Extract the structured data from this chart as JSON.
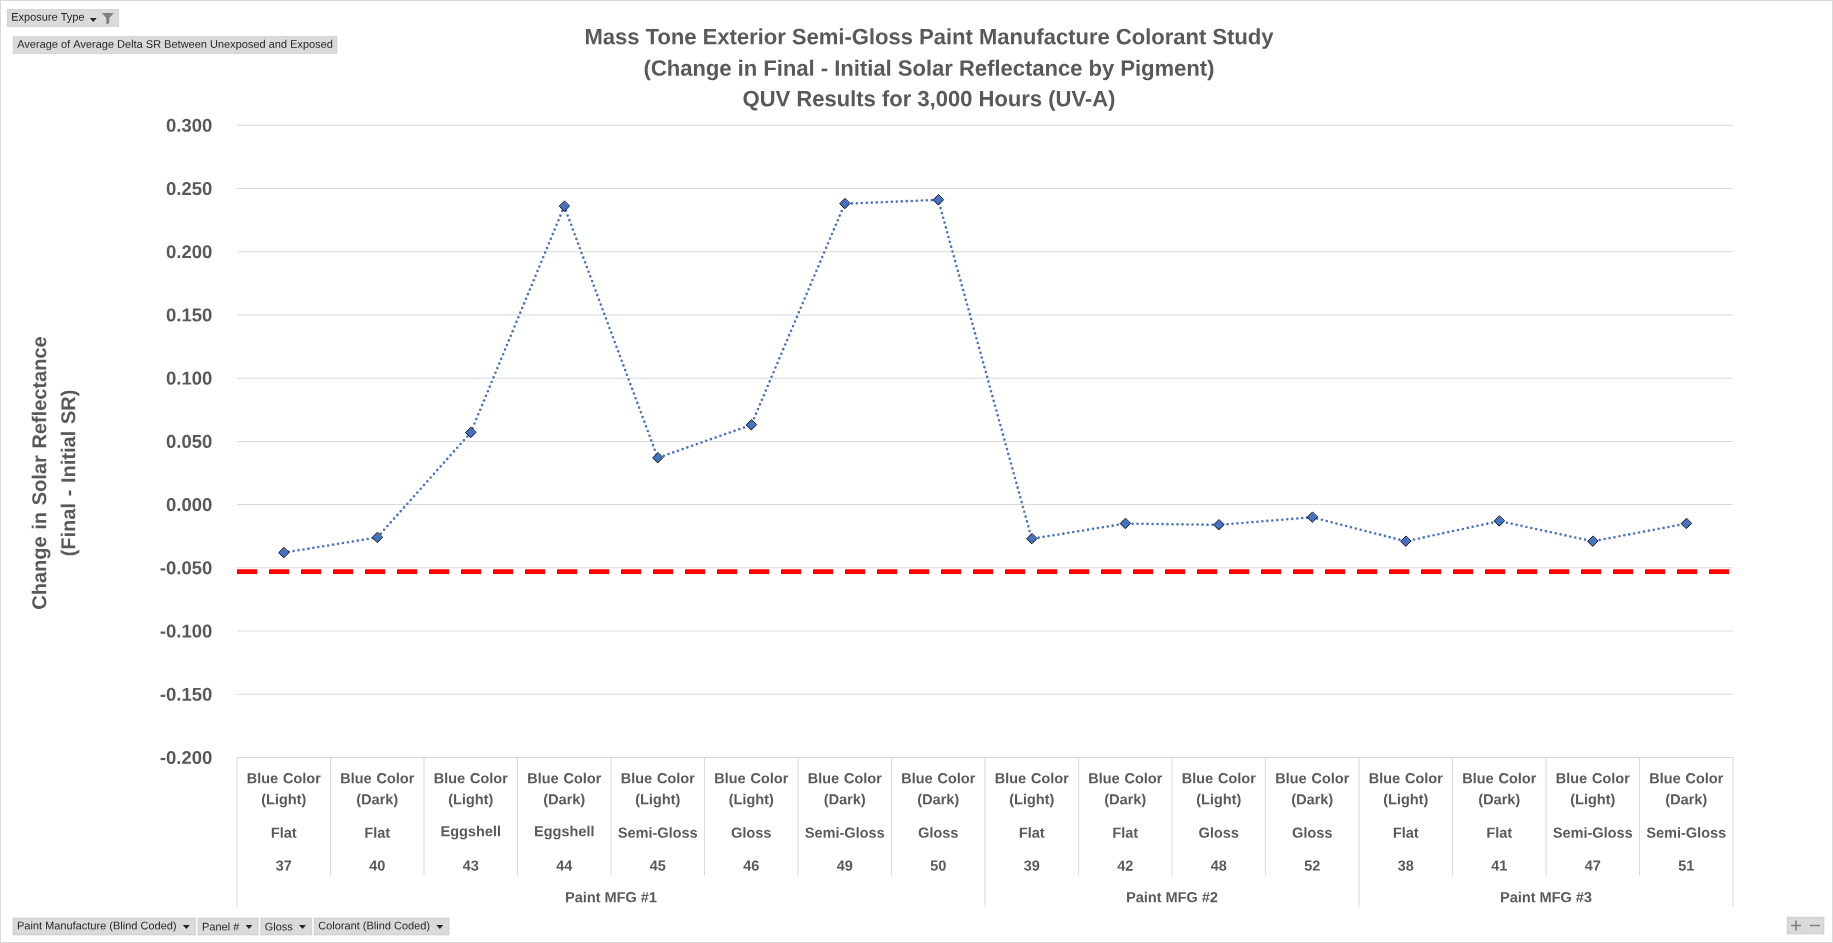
{
  "chart_data": {
    "type": "line",
    "title": "Mass Tone Exterior Semi-Gloss Paint Manufacture Colorant Study (Change in Final - Initial Solar Reflectance by Pigment)",
    "subtitle": "QUV Results for 3,000 Hours (UV-A)",
    "ylabel": "Change in Solar Reflectance (Final - Initial SR)",
    "categories": [
      "37",
      "40",
      "43",
      "44",
      "45",
      "46",
      "49",
      "50",
      "39",
      "42",
      "48",
      "52",
      "38",
      "41",
      "47",
      "51"
    ],
    "series": [
      {
        "color": "#4472c4",
        "values": [
          -0.038,
          -0.026,
          0.057,
          0.236,
          0.037,
          0.063,
          0.238,
          0.241,
          -0.027,
          -0.015,
          -0.016,
          -0.01,
          -0.029,
          -0.013,
          -0.029,
          -0.015
        ]
      }
    ],
    "ylim": [
      -0.2,
      0.3
    ],
    "yticks": [
      {
        "value": -0.2,
        "label": "-0.200"
      },
      {
        "value": -0.15,
        "label": "-0.150"
      },
      {
        "value": -0.1,
        "label": "-0.100"
      },
      {
        "value": -0.05,
        "label": "-0.050"
      },
      {
        "value": 0,
        "label": "0.000"
      },
      {
        "value": 0.05,
        "label": "0.050"
      },
      {
        "value": 0.1,
        "label": "0.100"
      },
      {
        "value": 0.15,
        "label": "0.150"
      },
      {
        "value": 0.2,
        "label": "0.200"
      },
      {
        "value": 0.25,
        "label": "0.250"
      },
      {
        "value": 0.3,
        "label": "0.300"
      }
    ],
    "grid": "y",
    "marker": "diamond",
    "line_style": "dotted",
    "ref_lines": [
      {
        "axis": "y",
        "value": -0.053,
        "color": "#ff0000",
        "line_style": "dashed"
      }
    ],
    "annotations": [
      "Blue Color (Light)",
      "Blue Color (Dark)",
      "Blue Color (Light)",
      "Blue Color (Dark)",
      "Blue Color (Light)",
      "Blue Color (Light)",
      "Blue Color (Dark)",
      "Blue Color (Dark)",
      "Blue Color (Light)",
      "Blue Color (Dark)",
      "Blue Color (Light)",
      "Blue Color (Dark)",
      "Blue Color (Light)",
      "Blue Color (Dark)",
      "Blue Color (Light)",
      "Blue Color (Dark)",
      "Flat",
      "Flat",
      "Eggshell",
      "Eggshell",
      "Semi-Gloss",
      "Gloss",
      "Semi-Gloss",
      "Gloss",
      "Flat",
      "Flat",
      "Gloss",
      "Gloss",
      "Flat",
      "Flat",
      "Semi-Gloss",
      "Semi-Gloss",
      "Paint MFG #1",
      "Paint MFG #2",
      "Paint MFG #3",
      "Exposure Type",
      "Average of Average Delta SR Between Unexposed and Exposed",
      "Paint Manufacture (Blind Coded)",
      "Panel #",
      "Gloss",
      "Colorant (Blind Coded)"
    ]
  }
}
